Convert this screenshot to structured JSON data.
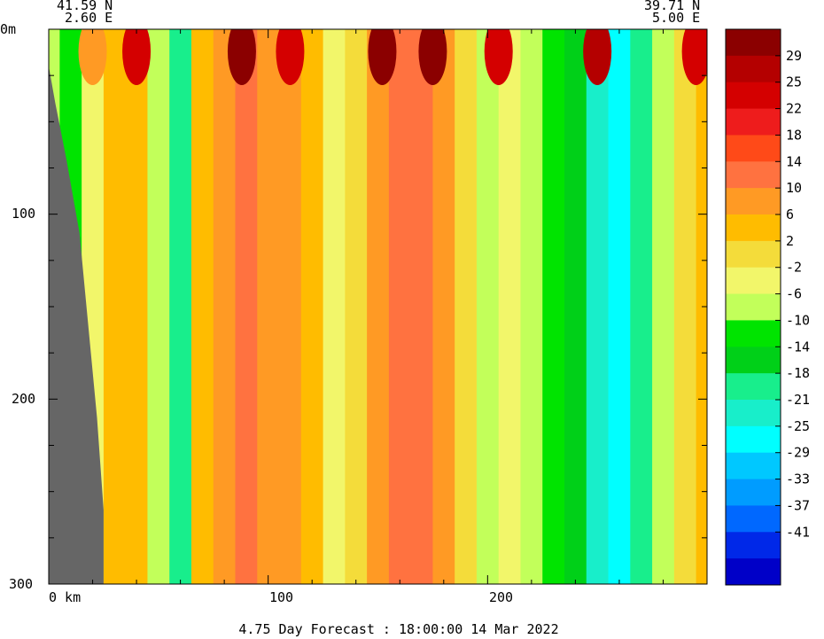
{
  "chart_data": {
    "type": "heatmap",
    "title": "",
    "xlabel": "",
    "ylabel": "",
    "x_unit_label": "km",
    "y_unit_label": "m",
    "xlim": [
      0,
      300
    ],
    "ylim": [
      300,
      0
    ],
    "x_ticks": [
      0,
      100,
      200
    ],
    "x_tick_labels": [
      "0 km",
      "100",
      "200"
    ],
    "y_ticks": [
      0,
      100,
      200,
      300
    ],
    "y_tick_labels": [
      "0m",
      "100",
      "200",
      "300"
    ],
    "start_point": {
      "lat": "41.59 N",
      "lon": "2.60 E"
    },
    "end_point": {
      "lat": "39.71 N",
      "lon": "5.00 E"
    },
    "colorbar": {
      "labels": [
        "29",
        "25",
        "22",
        "18",
        "14",
        "10",
        "6",
        "2",
        "-2",
        "-6",
        "-10",
        "-14",
        "-18",
        "-21",
        "-25",
        "-29",
        "-33",
        "-37",
        "-41"
      ],
      "colors": [
        "#8b0000",
        "#b40000",
        "#d40000",
        "#ee1c1c",
        "#ff4a18",
        "#ff7240",
        "#ff9a24",
        "#ffbc00",
        "#f4dc3a",
        "#f2f66a",
        "#c2ff5a",
        "#00e400",
        "#00d018",
        "#18ee8c",
        "#18eeca",
        "#00ffff",
        "#00c8ff",
        "#009cff",
        "#0068ff",
        "#0028e8",
        "#0000c8"
      ]
    },
    "columns_x_km": [
      0,
      10,
      20,
      30,
      40,
      50,
      60,
      70,
      80,
      90,
      100,
      110,
      120,
      130,
      140,
      150,
      160,
      170,
      180,
      190,
      200,
      210,
      220,
      230,
      240,
      250,
      260,
      270,
      280,
      290,
      300
    ],
    "column_values": [
      -9,
      -12,
      -4,
      2,
      2,
      -8,
      -20,
      2,
      8,
      12,
      8,
      6,
      2,
      -4,
      -2,
      8,
      10,
      12,
      6,
      0,
      -10,
      -6,
      -10,
      -12,
      -16,
      -22,
      -28,
      -20,
      -8,
      0,
      4
    ],
    "surface_values_x_km": [
      20,
      40,
      88,
      110,
      152,
      175,
      205,
      250,
      295
    ],
    "surface_values": [
      8,
      24,
      32,
      24,
      32,
      30,
      24,
      28,
      24
    ],
    "topography": {
      "label": "land",
      "boundary_x_km": [
        0,
        3,
        8,
        14,
        18,
        22,
        25,
        25,
        0
      ],
      "boundary_depth_m": [
        20,
        40,
        70,
        110,
        160,
        210,
        260,
        300,
        300
      ]
    },
    "forecast_label": "4.75 Day Forecast : 18:00:00  14 Mar 2022"
  }
}
